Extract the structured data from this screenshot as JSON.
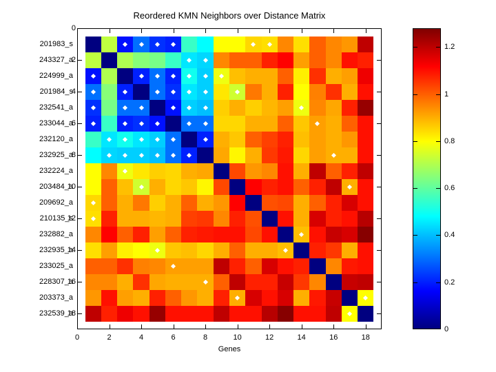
{
  "title": "Reordered KMN Neighbors over Distance Matrix",
  "x_axis": {
    "label": "Genes",
    "tick_labels": [
      "0",
      "2",
      "4",
      "6",
      "8",
      "10",
      "12",
      "14",
      "16",
      "18"
    ],
    "tick_values": [
      0,
      2,
      4,
      6,
      8,
      10,
      12,
      14,
      16,
      18
    ]
  },
  "y_axis": {
    "tick_labels": [
      "0",
      "2",
      "4",
      "6",
      "8",
      "10",
      "12",
      "14",
      "16",
      "18"
    ],
    "tick_values": [
      0,
      2,
      4,
      6,
      8,
      10,
      12,
      14,
      16,
      18
    ],
    "gene_labels": [
      "201983_s",
      "243327_a",
      "224999_a",
      "201984_s",
      "232541_a",
      "233044_a",
      "232120_a",
      "232925_a",
      "232224_a",
      "203484_a",
      "209692_a",
      "210135_s",
      "232882_a",
      "232935_a",
      "233025_a",
      "228307_a",
      "203373_a",
      "232539_a"
    ]
  },
  "colorbar": {
    "tick_labels": [
      "0",
      "0.2",
      "0.4",
      "0.6",
      "0.8",
      "1",
      "1.2"
    ],
    "tick_values": [
      0,
      0.2,
      0.4,
      0.6,
      0.8,
      1.0,
      1.2
    ],
    "min": 0,
    "max": 1.28
  },
  "colors": {
    "background": "#ffffff",
    "axis": "#000000",
    "marker": "#ffffff"
  },
  "chart_data": {
    "type": "heatmap",
    "title": "Reordered KMN Neighbors over Distance Matrix",
    "xlabel": "Genes",
    "ylabel": "",
    "colormap": "jet",
    "clim": [
      0,
      1.28
    ],
    "grid": false,
    "rows": [
      "201983_s",
      "243327_a",
      "224999_a",
      "201984_s",
      "232541_a",
      "233044_a",
      "232120_a",
      "232925_a",
      "232224_a",
      "203484_a",
      "209692_a",
      "210135_s",
      "232882_a",
      "232935_a",
      "233025_a",
      "228307_a",
      "203373_a",
      "232539_a"
    ],
    "matrix": [
      [
        0,
        0.72,
        0.18,
        0.3,
        0.22,
        0.2,
        0.55,
        0.48,
        0.8,
        0.8,
        0.85,
        0.84,
        0.95,
        0.84,
        1.0,
        0.95,
        0.93,
        1.2
      ],
      [
        0.72,
        0,
        0.7,
        0.65,
        0.63,
        0.55,
        0.45,
        0.43,
        0.95,
        1.0,
        1.0,
        1.08,
        1.12,
        0.92,
        1.0,
        0.95,
        1.1,
        1.08
      ],
      [
        0.18,
        0.7,
        0,
        0.2,
        0.3,
        0.2,
        0.5,
        0.42,
        0.78,
        0.88,
        0.9,
        0.9,
        1.0,
        0.82,
        1.06,
        0.9,
        0.92,
        1.14
      ],
      [
        0.3,
        0.65,
        0.2,
        0,
        0.3,
        0.22,
        0.45,
        0.42,
        0.83,
        0.74,
        0.97,
        0.9,
        1.08,
        0.8,
        0.96,
        1.06,
        0.9,
        1.1
      ],
      [
        0.22,
        0.63,
        0.3,
        0.3,
        0,
        0.18,
        0.42,
        0.4,
        0.86,
        0.9,
        0.86,
        0.89,
        0.92,
        0.78,
        0.95,
        0.91,
        1.08,
        1.25
      ],
      [
        0.2,
        0.55,
        0.2,
        0.22,
        0.18,
        0,
        0.3,
        0.3,
        0.85,
        0.85,
        0.9,
        0.9,
        1.0,
        0.87,
        0.92,
        0.9,
        1.0,
        1.1
      ],
      [
        0.55,
        0.45,
        0.5,
        0.45,
        0.42,
        0.3,
        0,
        0.2,
        0.9,
        0.87,
        1.0,
        1.04,
        1.08,
        0.88,
        0.92,
        0.9,
        0.93,
        1.1
      ],
      [
        0.48,
        0.43,
        0.42,
        0.42,
        0.4,
        0.3,
        0.2,
        0,
        0.91,
        0.81,
        0.9,
        1.05,
        1.09,
        0.85,
        0.92,
        0.9,
        0.9,
        1.1
      ],
      [
        0.8,
        0.95,
        0.78,
        0.83,
        0.86,
        0.85,
        0.9,
        0.91,
        0,
        1.03,
        0.93,
        0.95,
        1.1,
        0.9,
        1.2,
        1.0,
        1.08,
        1.2
      ],
      [
        0.8,
        1.0,
        0.88,
        0.74,
        0.9,
        0.85,
        0.87,
        0.81,
        1.03,
        0,
        1.12,
        1.08,
        1.1,
        1.0,
        1.08,
        1.2,
        0.9,
        1.1
      ],
      [
        0.85,
        1.0,
        0.9,
        0.97,
        0.86,
        0.9,
        1.0,
        0.9,
        0.93,
        1.12,
        0,
        1.02,
        1.03,
        0.9,
        1.0,
        1.08,
        1.17,
        1.1
      ],
      [
        0.84,
        1.08,
        0.9,
        0.9,
        0.89,
        0.9,
        1.04,
        1.05,
        0.95,
        1.08,
        1.02,
        0,
        1.1,
        0.9,
        1.17,
        1.08,
        1.1,
        1.21
      ],
      [
        0.95,
        1.12,
        1.0,
        1.08,
        0.92,
        1.0,
        1.08,
        1.09,
        1.1,
        1.1,
        1.03,
        1.1,
        0,
        0.88,
        1.1,
        1.19,
        1.17,
        1.27
      ],
      [
        0.84,
        0.92,
        0.82,
        0.8,
        0.78,
        0.87,
        0.88,
        0.85,
        0.9,
        1.0,
        0.9,
        0.9,
        0.88,
        0,
        1.08,
        1.05,
        0.9,
        1.1
      ],
      [
        1.0,
        1.0,
        1.06,
        0.96,
        0.95,
        0.92,
        0.92,
        0.92,
        1.2,
        1.08,
        1.0,
        1.17,
        1.1,
        1.08,
        0,
        0.95,
        1.09,
        1.1
      ],
      [
        0.95,
        0.95,
        0.9,
        1.06,
        0.91,
        0.9,
        0.9,
        0.9,
        1.0,
        1.2,
        1.08,
        1.08,
        1.19,
        1.05,
        0.95,
        0,
        1.19,
        1.2
      ],
      [
        0.93,
        1.1,
        0.92,
        0.9,
        1.08,
        1.0,
        0.93,
        0.9,
        1.08,
        0.9,
        1.17,
        1.1,
        1.17,
        0.9,
        1.09,
        1.19,
        0,
        0.8
      ],
      [
        1.2,
        1.08,
        1.14,
        1.1,
        1.25,
        1.1,
        1.1,
        1.1,
        1.2,
        1.1,
        1.1,
        1.21,
        1.27,
        1.1,
        1.1,
        1.2,
        0.8,
        0
      ]
    ],
    "neighbor_marker_pairs": [
      [
        1,
        3
      ],
      [
        1,
        4
      ],
      [
        1,
        5
      ],
      [
        1,
        6
      ],
      [
        1,
        11
      ],
      [
        1,
        12
      ],
      [
        2,
        7
      ],
      [
        2,
        8
      ],
      [
        3,
        4
      ],
      [
        3,
        5
      ],
      [
        3,
        6
      ],
      [
        3,
        7
      ],
      [
        3,
        8
      ],
      [
        3,
        9
      ],
      [
        4,
        5
      ],
      [
        4,
        6
      ],
      [
        4,
        7
      ],
      [
        4,
        8
      ],
      [
        4,
        10
      ],
      [
        5,
        6
      ],
      [
        5,
        7
      ],
      [
        5,
        8
      ],
      [
        5,
        14
      ],
      [
        6,
        7
      ],
      [
        6,
        8
      ],
      [
        6,
        15
      ],
      [
        7,
        8
      ],
      [
        8,
        16
      ],
      [
        10,
        17
      ],
      [
        13,
        14
      ],
      [
        17,
        18
      ]
    ],
    "marker": "white-diamond"
  }
}
